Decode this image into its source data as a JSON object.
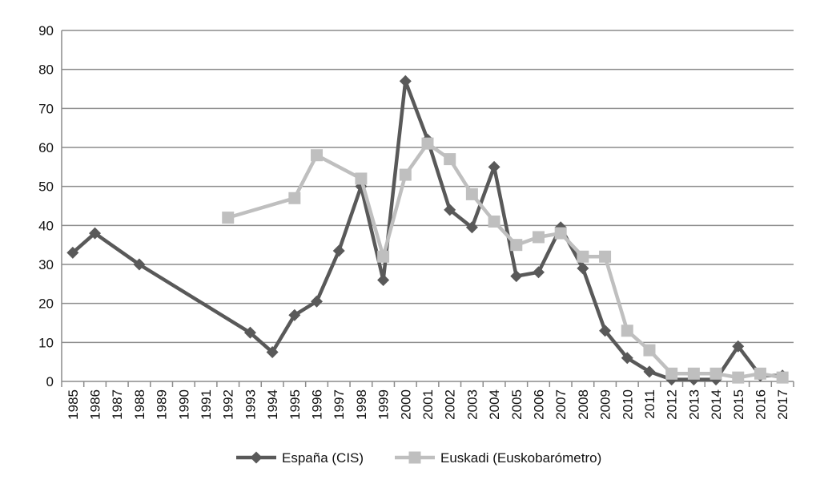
{
  "chart_data": {
    "type": "line",
    "xlabel": "",
    "ylabel": "",
    "ylim": [
      0,
      90
    ],
    "yticks": [
      0,
      10,
      20,
      30,
      40,
      50,
      60,
      70,
      80,
      90
    ],
    "categories": [
      "1985",
      "1986",
      "1987",
      "1988",
      "1989",
      "1990",
      "1991",
      "1992",
      "1993",
      "1994",
      "1995",
      "1996",
      "1997",
      "1998",
      "1999",
      "2000",
      "2001",
      "2002",
      "2003",
      "2004",
      "2005",
      "2006",
      "2007",
      "2008",
      "2009",
      "2010",
      "2011",
      "2012",
      "2013",
      "2014",
      "2015",
      "2016",
      "2017"
    ],
    "grid": "horizontal",
    "legend_position": "bottom",
    "series": [
      {
        "name": "España (CIS)",
        "color": "#595959",
        "marker": "diamond",
        "values": [
          33,
          38,
          null,
          30,
          null,
          null,
          null,
          null,
          12.5,
          7.5,
          17,
          20.5,
          33.5,
          50,
          26,
          77,
          62,
          44,
          39.5,
          55,
          27,
          28,
          39.5,
          29,
          13,
          6,
          2.5,
          0.5,
          0.5,
          0.5,
          9,
          1.5,
          1.5
        ]
      },
      {
        "name": "Euskadi (Euskobarómetro)",
        "color": "#bfbfbf",
        "marker": "square",
        "values": [
          null,
          null,
          null,
          null,
          null,
          null,
          null,
          42,
          null,
          null,
          47,
          58,
          null,
          52,
          32,
          53,
          61,
          57,
          48,
          41,
          35,
          37,
          38,
          32,
          32,
          13,
          8,
          2,
          2,
          2,
          1,
          2,
          1
        ]
      }
    ]
  }
}
